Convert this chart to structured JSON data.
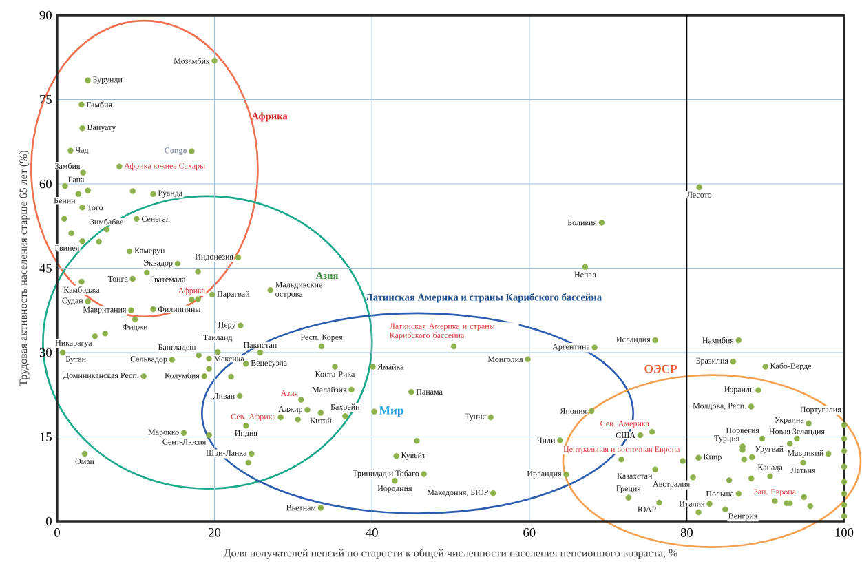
{
  "chart_data": {
    "type": "scatter",
    "xlabel": "Доля получателей пенсий по старости к общей численности населения пенсионного возраста, %",
    "ylabel": "Трудовая активность населения старше 65 лет (%)",
    "xlim": [
      0,
      100
    ],
    "xticks": [
      0,
      20,
      40,
      60,
      80,
      100
    ],
    "ylim": [
      0,
      90
    ],
    "yticks": [
      0,
      15,
      30,
      45,
      60,
      75,
      90
    ],
    "grid": true,
    "marker": "circle",
    "color": "#8cb04a",
    "ref_lines": [
      {
        "axis": "x",
        "value": 80,
        "color": "#000000"
      }
    ],
    "x": [
      20.0,
      3.9,
      3.1,
      3.2,
      1.7,
      17.1,
      7.9,
      3.3,
      1.0,
      2.7,
      3.9,
      9.6,
      12.2,
      3.2,
      0.9,
      6.3,
      10.1,
      1.8,
      3.2,
      5.3,
      9.2,
      15.3,
      23.0,
      17.9,
      9.6,
      11.4,
      3.1,
      3.9,
      17.1,
      17.9,
      19.7,
      27.1,
      9.4,
      12.2,
      9.9,
      23.3,
      4.8,
      6.1,
      0.7,
      20.4,
      18.0,
      25.8,
      33.6,
      14.6,
      19.3,
      19.3,
      18.7,
      24.0,
      22.1,
      11.0,
      35.3,
      40.1,
      50.4,
      59.8,
      68.3,
      76.0,
      86.6,
      85.9,
      90.0,
      81.6,
      69.2,
      67.1,
      23.2,
      37.4,
      31.0,
      31.8,
      28.4,
      30.6,
      33.5,
      36.6,
      45.0,
      40.3,
      55.1,
      24.0,
      16.1,
      19.3,
      24.7,
      24.3,
      3.5,
      45.7,
      43.1,
      46.6,
      42.9,
      55.4,
      33.5,
      64.7,
      63.9,
      67.9,
      74.1,
      75.6,
      71.7,
      76.0,
      79.5,
      81.5,
      72.6,
      76.5,
      80.8,
      82.9,
      81.5,
      84.9,
      85.4,
      86.6,
      87.1,
      87.1,
      87.3,
      88.3,
      88.2,
      90.6,
      89.1,
      88.2,
      89.6,
      95.5,
      94.0,
      93.1,
      98.0,
      94.8,
      91.2,
      92.7,
      93.1,
      94.9,
      95.7,
      100,
      100,
      100,
      100,
      100,
      100,
      100,
      100
    ],
    "values": [
      81.9,
      78.4,
      74.1,
      69.9,
      65.9,
      65.8,
      63.1,
      62.0,
      59.6,
      58.2,
      58.8,
      58.7,
      58.2,
      55.8,
      53.8,
      51.9,
      53.8,
      51.2,
      49.8,
      49.7,
      48.0,
      45.8,
      46.9,
      44.4,
      43.1,
      44.2,
      42.6,
      39.1,
      39.4,
      39.5,
      40.3,
      41.1,
      37.5,
      37.7,
      35.9,
      34.8,
      32.9,
      33.4,
      30.0,
      30.1,
      29.5,
      30.0,
      31.1,
      28.7,
      28.9,
      27.1,
      25.8,
      28.0,
      25.7,
      25.8,
      27.5,
      27.5,
      31.1,
      28.8,
      30.9,
      32.2,
      32.2,
      28.4,
      27.5,
      59.4,
      53.1,
      45.2,
      22.3,
      23.4,
      21.6,
      19.8,
      18.5,
      18.1,
      19.3,
      18.7,
      23.0,
      19.5,
      18.5,
      17.0,
      15.7,
      15.3,
      12.0,
      10.4,
      12.0,
      14.3,
      11.6,
      8.4,
      7.2,
      5.0,
      2.4,
      8.3,
      14.4,
      19.6,
      15.3,
      15.9,
      11.0,
      9.2,
      10.7,
      11.3,
      4.2,
      3.3,
      7.8,
      3.1,
      1.6,
      2.1,
      7.3,
      4.9,
      13.3,
      12.7,
      11.0,
      11.4,
      7.6,
      8.0,
      23.3,
      20.4,
      14.7,
      17.4,
      14.7,
      13.8,
      12.0,
      10.4,
      3.6,
      3.2,
      3.2,
      4.3,
      2.7,
      17.1,
      14.7,
      12.5,
      9.7,
      7.0,
      4.9,
      2.9,
      0.9
    ],
    "annotations": [
      {
        "text": "Мозамбик",
        "x": 20.0,
        "y": 81.9
      },
      {
        "text": "Бурунди",
        "x": 3.9,
        "y": 78.4
      },
      {
        "text": "Гамбия",
        "x": 3.1,
        "y": 74.1
      },
      {
        "text": "Вануату",
        "x": 3.2,
        "y": 69.9
      },
      {
        "text": "Чад",
        "x": 1.7,
        "y": 65.9
      },
      {
        "text": "Congo",
        "x": 17.1,
        "y": 65.8
      },
      {
        "text": "Африка южнее Сахары",
        "x": 7.9,
        "y": 63.1
      },
      {
        "text": "Замбия",
        "x": 3.3,
        "y": 62.0
      },
      {
        "text": "Гана",
        "x": 1.0,
        "y": 59.6
      },
      {
        "text": "Бенин",
        "x": 2.7,
        "y": 58.2
      },
      {
        "text": "Руанда",
        "x": 12.2,
        "y": 58.2
      },
      {
        "text": "Того",
        "x": 3.2,
        "y": 55.8
      },
      {
        "text": "Зимбабве",
        "x": 6.3,
        "y": 51.9
      },
      {
        "text": "Сенегал",
        "x": 10.1,
        "y": 53.8
      },
      {
        "text": "Гвинея",
        "x": 3.2,
        "y": 49.8
      },
      {
        "text": "Камерун",
        "x": 9.2,
        "y": 48.0
      },
      {
        "text": "Эквадор",
        "x": 15.3,
        "y": 45.8
      },
      {
        "text": "Индонезия",
        "x": 23.0,
        "y": 46.9
      },
      {
        "text": "Тонга",
        "x": 9.6,
        "y": 43.1
      },
      {
        "text": "Гватемала",
        "x": 11.4,
        "y": 44.2
      },
      {
        "text": "Камбоджа",
        "x": 3.1,
        "y": 42.6
      },
      {
        "text": "Судан",
        "x": 3.9,
        "y": 39.1
      },
      {
        "text": "Африка",
        "x": 17.1,
        "y": 39.4
      },
      {
        "text": "Парагвай",
        "x": 19.7,
        "y": 40.3
      },
      {
        "text": "Мальдивские острова",
        "x": 27.1,
        "y": 41.1
      },
      {
        "text": "Мавритания",
        "x": 9.4,
        "y": 37.5
      },
      {
        "text": "Филиппины",
        "x": 12.2,
        "y": 37.7
      },
      {
        "text": "Фиджи",
        "x": 9.9,
        "y": 35.9
      },
      {
        "text": "Перу",
        "x": 23.3,
        "y": 34.8
      },
      {
        "text": "Никарагуа",
        "x": 4.8,
        "y": 32.9
      },
      {
        "text": "Бутан",
        "x": 0.7,
        "y": 30.0
      },
      {
        "text": "Таиланд",
        "x": 20.4,
        "y": 30.1
      },
      {
        "text": "Бангладеш",
        "x": 18.0,
        "y": 29.5
      },
      {
        "text": "Пакистан",
        "x": 25.8,
        "y": 30.0
      },
      {
        "text": "Респ. Корея",
        "x": 33.6,
        "y": 31.1
      },
      {
        "text": "Сальвадор",
        "x": 14.6,
        "y": 28.7
      },
      {
        "text": "Мексика",
        "x": 19.3,
        "y": 28.9
      },
      {
        "text": "Колумбия",
        "x": 18.7,
        "y": 25.8
      },
      {
        "text": "Венесуэла",
        "x": 24.0,
        "y": 28.0
      },
      {
        "text": "Доминиканская Респ.",
        "x": 11.0,
        "y": 25.8
      },
      {
        "text": "Коста-Рика",
        "x": 35.3,
        "y": 27.5
      },
      {
        "text": "Ямайка",
        "x": 40.1,
        "y": 27.5
      },
      {
        "text": "Латинская Америка и страны Карибского бассейна",
        "x": 50.4,
        "y": 31.1
      },
      {
        "text": "Монголия",
        "x": 59.8,
        "y": 28.8
      },
      {
        "text": "Аргентина",
        "x": 68.3,
        "y": 30.9
      },
      {
        "text": "Исландия",
        "x": 76.0,
        "y": 32.2
      },
      {
        "text": "Намибия",
        "x": 86.6,
        "y": 32.2
      },
      {
        "text": "Бразилия",
        "x": 85.9,
        "y": 28.4
      },
      {
        "text": "Кабо-Верде",
        "x": 90.0,
        "y": 27.5
      },
      {
        "text": "Лесото",
        "x": 81.6,
        "y": 59.4
      },
      {
        "text": "Боливия",
        "x": 69.2,
        "y": 53.1
      },
      {
        "text": "Непал",
        "x": 67.1,
        "y": 45.2
      },
      {
        "text": "Ливан",
        "x": 23.2,
        "y": 22.3
      },
      {
        "text": "Малайзия",
        "x": 37.4,
        "y": 23.4
      },
      {
        "text": "Азия",
        "x": 31.0,
        "y": 21.6
      },
      {
        "text": "Алжир",
        "x": 31.8,
        "y": 19.8
      },
      {
        "text": "Сев. Африка",
        "x": 28.4,
        "y": 18.5
      },
      {
        "text": "Китай",
        "x": 33.5,
        "y": 19.3
      },
      {
        "text": "Бахрейн",
        "x": 36.6,
        "y": 18.7
      },
      {
        "text": "Панама",
        "x": 45.0,
        "y": 23.0
      },
      {
        "text": "Мир",
        "x": 40.3,
        "y": 19.5
      },
      {
        "text": "Тунис",
        "x": 55.1,
        "y": 18.5
      },
      {
        "text": "Индия",
        "x": 24.0,
        "y": 17.0
      },
      {
        "text": "Марокко",
        "x": 16.1,
        "y": 15.7
      },
      {
        "text": "Сент-Люсия",
        "x": 19.3,
        "y": 15.3
      },
      {
        "text": "Шри-Ланка",
        "x": 24.7,
        "y": 12.0
      },
      {
        "text": "Оман",
        "x": 3.5,
        "y": 12.0
      },
      {
        "text": "Кувейт",
        "x": 43.1,
        "y": 11.6
      },
      {
        "text": "Тринидад и Тобаго",
        "x": 46.6,
        "y": 8.4
      },
      {
        "text": "Иордания",
        "x": 42.9,
        "y": 7.2
      },
      {
        "text": "Македония, БЮР",
        "x": 55.4,
        "y": 5.0
      },
      {
        "text": "Вьетнам",
        "x": 33.5,
        "y": 2.4
      },
      {
        "text": "Ирландия",
        "x": 64.7,
        "y": 8.3
      },
      {
        "text": "Чили",
        "x": 63.9,
        "y": 14.4
      },
      {
        "text": "Япония",
        "x": 67.9,
        "y": 19.6
      },
      {
        "text": "США",
        "x": 74.1,
        "y": 15.3
      },
      {
        "text": "Сев. Америка",
        "x": 75.6,
        "y": 15.9
      },
      {
        "text": "Казахстан",
        "x": 76.0,
        "y": 9.2
      },
      {
        "text": "Центральная и восточная Европа",
        "x": 79.5,
        "y": 10.7
      },
      {
        "text": "Кипр",
        "x": 81.5,
        "y": 11.3
      },
      {
        "text": "Греция",
        "x": 72.6,
        "y": 4.2
      },
      {
        "text": "ЮАР",
        "x": 76.5,
        "y": 3.3
      },
      {
        "text": "Австралия",
        "x": 80.8,
        "y": 7.8
      },
      {
        "text": "Италия",
        "x": 82.9,
        "y": 3.1
      },
      {
        "text": "Венгрия",
        "x": 84.9,
        "y": 2.1
      },
      {
        "text": "Польша",
        "x": 86.6,
        "y": 4.9
      },
      {
        "text": "Турция",
        "x": 87.1,
        "y": 13.3
      },
      {
        "text": "Уругвай",
        "x": 88.3,
        "y": 11.4
      },
      {
        "text": "Канада",
        "x": 90.6,
        "y": 8.0
      },
      {
        "text": "Израиль",
        "x": 89.1,
        "y": 23.3
      },
      {
        "text": "Молдова, Респ.",
        "x": 88.2,
        "y": 20.4
      },
      {
        "text": "Норвегия",
        "x": 89.6,
        "y": 14.7
      },
      {
        "text": "Украина",
        "x": 95.5,
        "y": 17.4
      },
      {
        "text": "Новая Зеландия",
        "x": 94.0,
        "y": 14.7
      },
      {
        "text": "Маврикий",
        "x": 98.0,
        "y": 12.0
      },
      {
        "text": "Латвия",
        "x": 94.8,
        "y": 10.4
      },
      {
        "text": "Зап. Европа",
        "x": 91.2,
        "y": 3.6
      },
      {
        "text": "Португалия",
        "x": 100,
        "y": 17.1
      },
      "Африка",
      "Азия",
      "Латинская Америка и страны Карибского бассейна",
      "ОЭСР"
    ]
  }
}
